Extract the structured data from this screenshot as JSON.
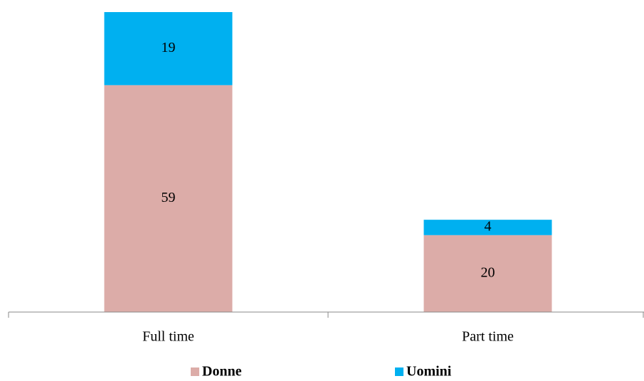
{
  "chart_data": {
    "type": "stacked_bar",
    "categories": [
      "Full time",
      "Part time"
    ],
    "series": [
      {
        "name": "Donne",
        "color": "#dcaca8",
        "values": [
          59,
          20
        ]
      },
      {
        "name": "Uomini",
        "color": "#00b0f0",
        "values": [
          19,
          4
        ]
      }
    ],
    "ylim": [
      0,
      78
    ],
    "legend": "bottom"
  }
}
